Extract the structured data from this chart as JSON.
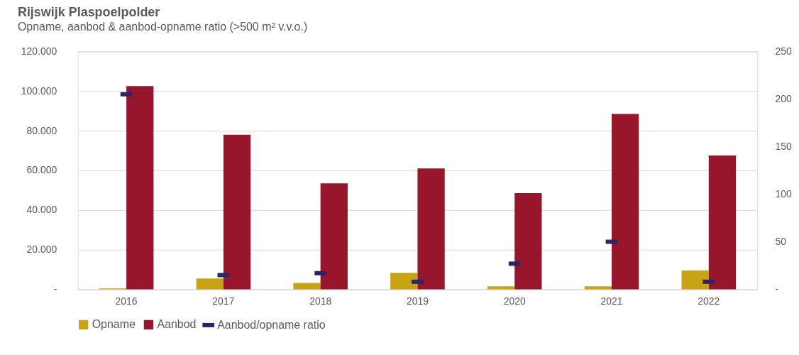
{
  "chart_data": {
    "type": "bar",
    "title": "Rijswijk Plaspoelpolder",
    "subtitle": "Opname, aanbod & aanbod-opname ratio (>500 m² v.v.o.)",
    "categories": [
      "2016",
      "2017",
      "2018",
      "2019",
      "2020",
      "2021",
      "2022"
    ],
    "series": [
      {
        "name": "Opname",
        "color": "#c8a415",
        "values": [
          500,
          5500,
          3200,
          8300,
          1500,
          1500,
          9500
        ]
      },
      {
        "name": "Aanbod",
        "color": "#97162b",
        "values": [
          102500,
          78000,
          53500,
          61000,
          48500,
          88500,
          67500
        ]
      },
      {
        "name": "Aanbod/opname ratio",
        "color": "#2b2466",
        "type": "scatter",
        "axis": "y2",
        "values": [
          205,
          15,
          17,
          8,
          27,
          50,
          8
        ]
      }
    ],
    "ylim": [
      0,
      120000
    ],
    "yticks": [
      {
        "value": 0,
        "label": "-"
      },
      {
        "value": 20000,
        "label": "20.000"
      },
      {
        "value": 40000,
        "label": "40.000"
      },
      {
        "value": 60000,
        "label": "60.000"
      },
      {
        "value": 80000,
        "label": "80.000"
      },
      {
        "value": 100000,
        "label": "100.000"
      },
      {
        "value": 120000,
        "label": "120.000"
      }
    ],
    "y2lim": [
      0,
      250
    ],
    "y2ticks": [
      {
        "value": 0,
        "label": "-"
      },
      50,
      100,
      150,
      200,
      250
    ],
    "grid": "y",
    "legend": "bottom"
  }
}
